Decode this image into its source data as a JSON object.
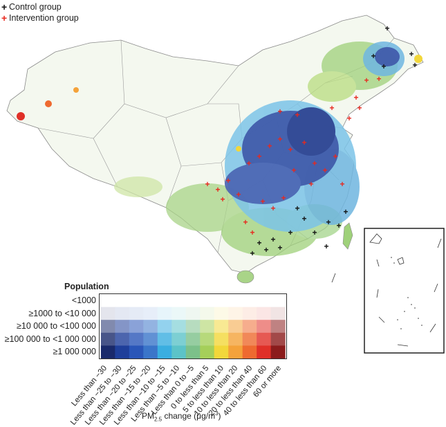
{
  "legend_markers": [
    {
      "symbol": "+",
      "label": "Control group",
      "color": "#111111"
    },
    {
      "symbol": "+",
      "label": "Intervention group",
      "color": "#e8281e"
    }
  ],
  "population_legend": {
    "title": "Population",
    "rows": [
      "<1000",
      "≥1000 to <10 000",
      "≥10 000 to <100 000",
      "≥100 000 to <1 000 000",
      "≥1 000 000"
    ]
  },
  "pm25_categories": [
    "Less than −30",
    "Less than −25 to −30",
    "Less than −20 to −25",
    "Less than −15 to −20",
    "Less than −10 to −15",
    "Less than −5 to −10",
    "Less than 0 to −5",
    "0 to less than 5",
    "5 to less than 10",
    "10 to less than 20",
    "20 to less than 40",
    "40 to less than 60",
    "60 or more"
  ],
  "colors": {
    "hue_by_category": [
      "#1a2a6b",
      "#1f3f9a",
      "#2a56b8",
      "#3a75c9",
      "#3aaee0",
      "#5cc3c8",
      "#7cc08a",
      "#a5cf5a",
      "#f2d73a",
      "#f4a23a",
      "#ee6a30",
      "#e03028",
      "#8b1c1c"
    ],
    "control_marker": "#111111",
    "intervention_marker": "#e8281e"
  },
  "xlabel_main": "PM",
  "xlabel_sub": "2.5",
  "xlabel_rest": " change (μg/m",
  "xlabel_sup": "3",
  "xlabel_end": ")"
}
